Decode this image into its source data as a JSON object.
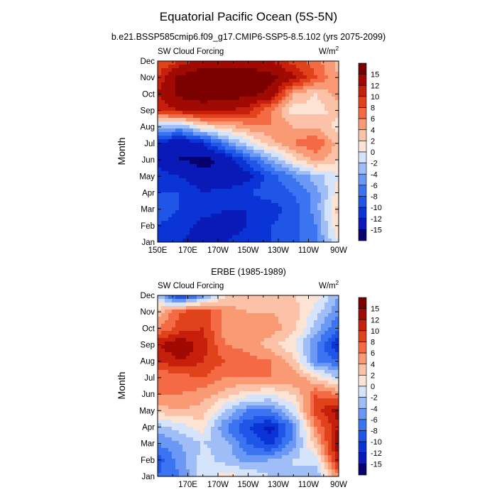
{
  "figure": {
    "title": "Equatorial Pacific Ocean (5S-5N)"
  },
  "chart_data": [
    {
      "type": "heatmap",
      "subtitle": "b.e21.BSSP585cmip6.f09_g17.CMIP6-SSP5-8.5.102 (yrs 2075-2099)",
      "variable_label": "SW Cloud Forcing",
      "units_label": "W/m2",
      "ylabel": "Month",
      "xlabel": "",
      "x_tick_labels": [
        "150E",
        "170E",
        "170W",
        "150W",
        "130W",
        "110W",
        "90W"
      ],
      "x_lon_range": [
        150,
        270
      ],
      "y_tick_labels": [
        "Jan",
        "Feb",
        "Mar",
        "Apr",
        "May",
        "Jun",
        "Jul",
        "Aug",
        "Sep",
        "Oct",
        "Nov",
        "Dec"
      ],
      "colorbar_labels": [
        "15",
        "12",
        "10",
        "8",
        "6",
        "4",
        "2",
        "0",
        "-2",
        "-4",
        "-6",
        "-8",
        "-10",
        "-12",
        "-15"
      ],
      "grid_x": [
        150,
        165,
        180,
        195,
        210,
        225,
        240,
        255,
        270
      ],
      "grid_rows": [
        {
          "month": "Jan",
          "values": [
            -11,
            -12,
            -13,
            -12,
            -11,
            -10,
            -9,
            -6,
            0
          ]
        },
        {
          "month": "Feb",
          "values": [
            -10,
            -11,
            -13,
            -13,
            -12,
            -10,
            -9,
            -6,
            2
          ]
        },
        {
          "month": "Mar",
          "values": [
            -9,
            -10,
            -11,
            -12,
            -12,
            -11,
            -9,
            -5,
            3
          ]
        },
        {
          "month": "Apr",
          "values": [
            -10,
            -10,
            -12,
            -11,
            -10,
            -9,
            -8,
            -5,
            1
          ]
        },
        {
          "month": "May",
          "values": [
            -11,
            -12,
            -14,
            -15,
            -13,
            -9,
            -6,
            -3,
            0
          ]
        },
        {
          "month": "Jun",
          "values": [
            -13,
            -15,
            -16,
            -14,
            -9,
            -4,
            1,
            5,
            2
          ]
        },
        {
          "month": "Jul",
          "values": [
            -12,
            -15,
            -12,
            -6,
            -1,
            3,
            6,
            8,
            3
          ]
        },
        {
          "month": "Aug",
          "values": [
            -3,
            -4,
            1,
            3,
            5,
            6,
            4,
            4,
            1
          ]
        },
        {
          "month": "Sep",
          "values": [
            10,
            12,
            13,
            12,
            11,
            6,
            1,
            1,
            3
          ]
        },
        {
          "month": "Oct",
          "values": [
            12,
            16,
            17,
            17,
            16,
            14,
            4,
            2,
            5
          ]
        },
        {
          "month": "Nov",
          "values": [
            10,
            16,
            17,
            17,
            17,
            16,
            13,
            8,
            4
          ]
        },
        {
          "month": "Dec",
          "values": [
            8,
            10,
            14,
            14,
            14,
            12,
            9,
            7,
            3
          ]
        }
      ]
    },
    {
      "type": "heatmap",
      "subtitle": "ERBE (1985-1989)",
      "variable_label": "SW Cloud Forcing",
      "units_label": "W/m2",
      "ylabel": "Month",
      "xlabel": "",
      "x_tick_labels": [
        "170E",
        "170W",
        "150W",
        "130W",
        "110W",
        "90W"
      ],
      "x_lon_range": [
        150,
        270
      ],
      "y_tick_labels": [
        "Jan",
        "Feb",
        "Mar",
        "Apr",
        "May",
        "Jun",
        "Jul",
        "Aug",
        "Sep",
        "Oct",
        "Nov",
        "Dec"
      ],
      "colorbar_labels": [
        "15",
        "12",
        "10",
        "8",
        "6",
        "4",
        "2",
        "0",
        "-2",
        "-4",
        "-6",
        "-8",
        "-10",
        "-12",
        "-15"
      ],
      "grid_x": [
        150,
        165,
        180,
        195,
        210,
        225,
        240,
        255,
        270
      ],
      "grid_rows": [
        {
          "month": "Jan",
          "values": [
            -8,
            -6,
            -1,
            1,
            0,
            -2,
            -2,
            -4,
            6
          ]
        },
        {
          "month": "Feb",
          "values": [
            -9,
            -5,
            -1,
            -3,
            -5,
            -4,
            -2,
            -1,
            12
          ]
        },
        {
          "month": "Mar",
          "values": [
            -6,
            -4,
            -2,
            -3,
            -8,
            -11,
            -5,
            3,
            14
          ]
        },
        {
          "month": "Apr",
          "values": [
            -3,
            -1,
            1,
            -6,
            -10,
            -13,
            -6,
            6,
            12
          ]
        },
        {
          "month": "May",
          "values": [
            3,
            4,
            3,
            -2,
            -6,
            -6,
            -1,
            9,
            13
          ]
        },
        {
          "month": "Jun",
          "values": [
            6,
            6,
            5,
            3,
            1,
            0,
            2,
            8,
            6
          ]
        },
        {
          "month": "Jul",
          "values": [
            6,
            7,
            8,
            6,
            6,
            6,
            6,
            2,
            -2
          ]
        },
        {
          "month": "Aug",
          "values": [
            10,
            12,
            10,
            8,
            7,
            6,
            3,
            -6,
            -8
          ]
        },
        {
          "month": "Sep",
          "values": [
            12,
            14,
            11,
            6,
            5,
            3,
            0,
            -6,
            -12
          ]
        },
        {
          "month": "Oct",
          "values": [
            6,
            9,
            10,
            5,
            4,
            5,
            3,
            -3,
            -8
          ]
        },
        {
          "month": "Nov",
          "values": [
            3,
            8,
            10,
            5,
            4,
            4,
            3,
            -1,
            -6
          ]
        },
        {
          "month": "Dec",
          "values": [
            -2,
            -12,
            -6,
            2,
            3,
            3,
            2,
            1,
            -4
          ]
        }
      ]
    }
  ],
  "colors": {
    "levels": [
      -15,
      -12,
      -10,
      -8,
      -6,
      -4,
      -2,
      0,
      2,
      4,
      6,
      8,
      10,
      12,
      15
    ],
    "palette": [
      "#08006d",
      "#0a1ab8",
      "#0b34d6",
      "#1f56e8",
      "#3a74f0",
      "#6a98f4",
      "#9fbdf7",
      "#d6e4fb",
      "#fde3d4",
      "#fbc2a7",
      "#f99a74",
      "#f36a44",
      "#e0421b",
      "#c61f0c",
      "#a00a03",
      "#7b0000"
    ]
  }
}
